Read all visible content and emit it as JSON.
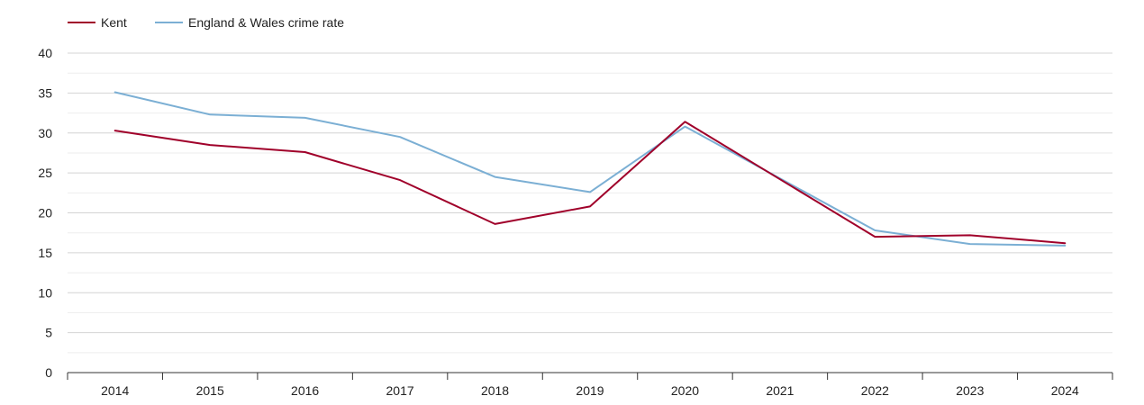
{
  "chart_data": {
    "type": "line",
    "x": [
      "2014",
      "2015",
      "2016",
      "2017",
      "2018",
      "2019",
      "2020",
      "2021",
      "2022",
      "2023",
      "2024"
    ],
    "series": [
      {
        "name": "Kent",
        "color": "#a0002a",
        "values": [
          30.3,
          28.5,
          27.6,
          24.1,
          18.6,
          20.8,
          31.4,
          24.2,
          17.0,
          17.2,
          16.2
        ]
      },
      {
        "name": "England & Wales crime rate",
        "color": "#7bafd4",
        "values": [
          35.1,
          32.3,
          31.9,
          29.5,
          24.5,
          22.6,
          30.8,
          24.3,
          17.8,
          16.1,
          15.9
        ]
      }
    ],
    "y_ticks": [
      "0",
      "5",
      "10",
      "15",
      "20",
      "25",
      "30",
      "35",
      "40"
    ],
    "ylim": [
      0,
      40
    ],
    "grid": true,
    "legend_position": "top-left",
    "title": "",
    "xlabel": "",
    "ylabel": ""
  }
}
